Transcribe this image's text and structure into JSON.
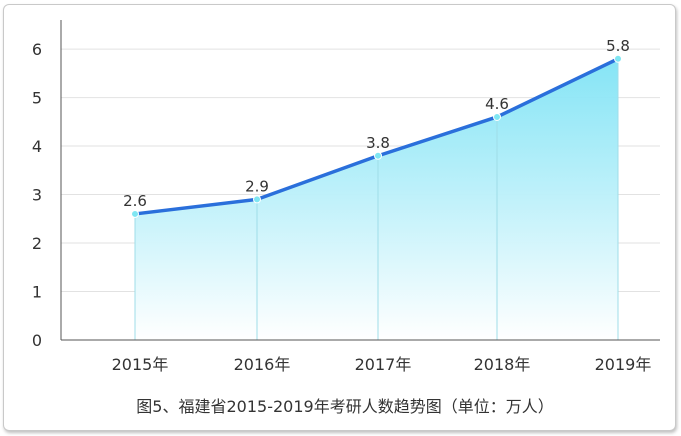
{
  "chart_data": {
    "type": "area",
    "categories": [
      "2015年",
      "2016年",
      "2017年",
      "2018年",
      "2019年"
    ],
    "values": [
      2.6,
      2.9,
      3.8,
      4.6,
      5.8
    ],
    "data_labels": [
      "2.6",
      "2.9",
      "3.8",
      "4.6",
      "5.8"
    ],
    "y_ticks": [
      "0",
      "1",
      "2",
      "3",
      "4",
      "5",
      "6"
    ],
    "ylim": [
      0,
      6.6
    ],
    "grid": true,
    "line_color": "#2a6fdb",
    "fill_color_top": "#7fe3f5",
    "fill_color_bottom": "#ffffff",
    "caption": "图5、福建省2015-2019年考研人数趋势图（单位：万人）"
  }
}
